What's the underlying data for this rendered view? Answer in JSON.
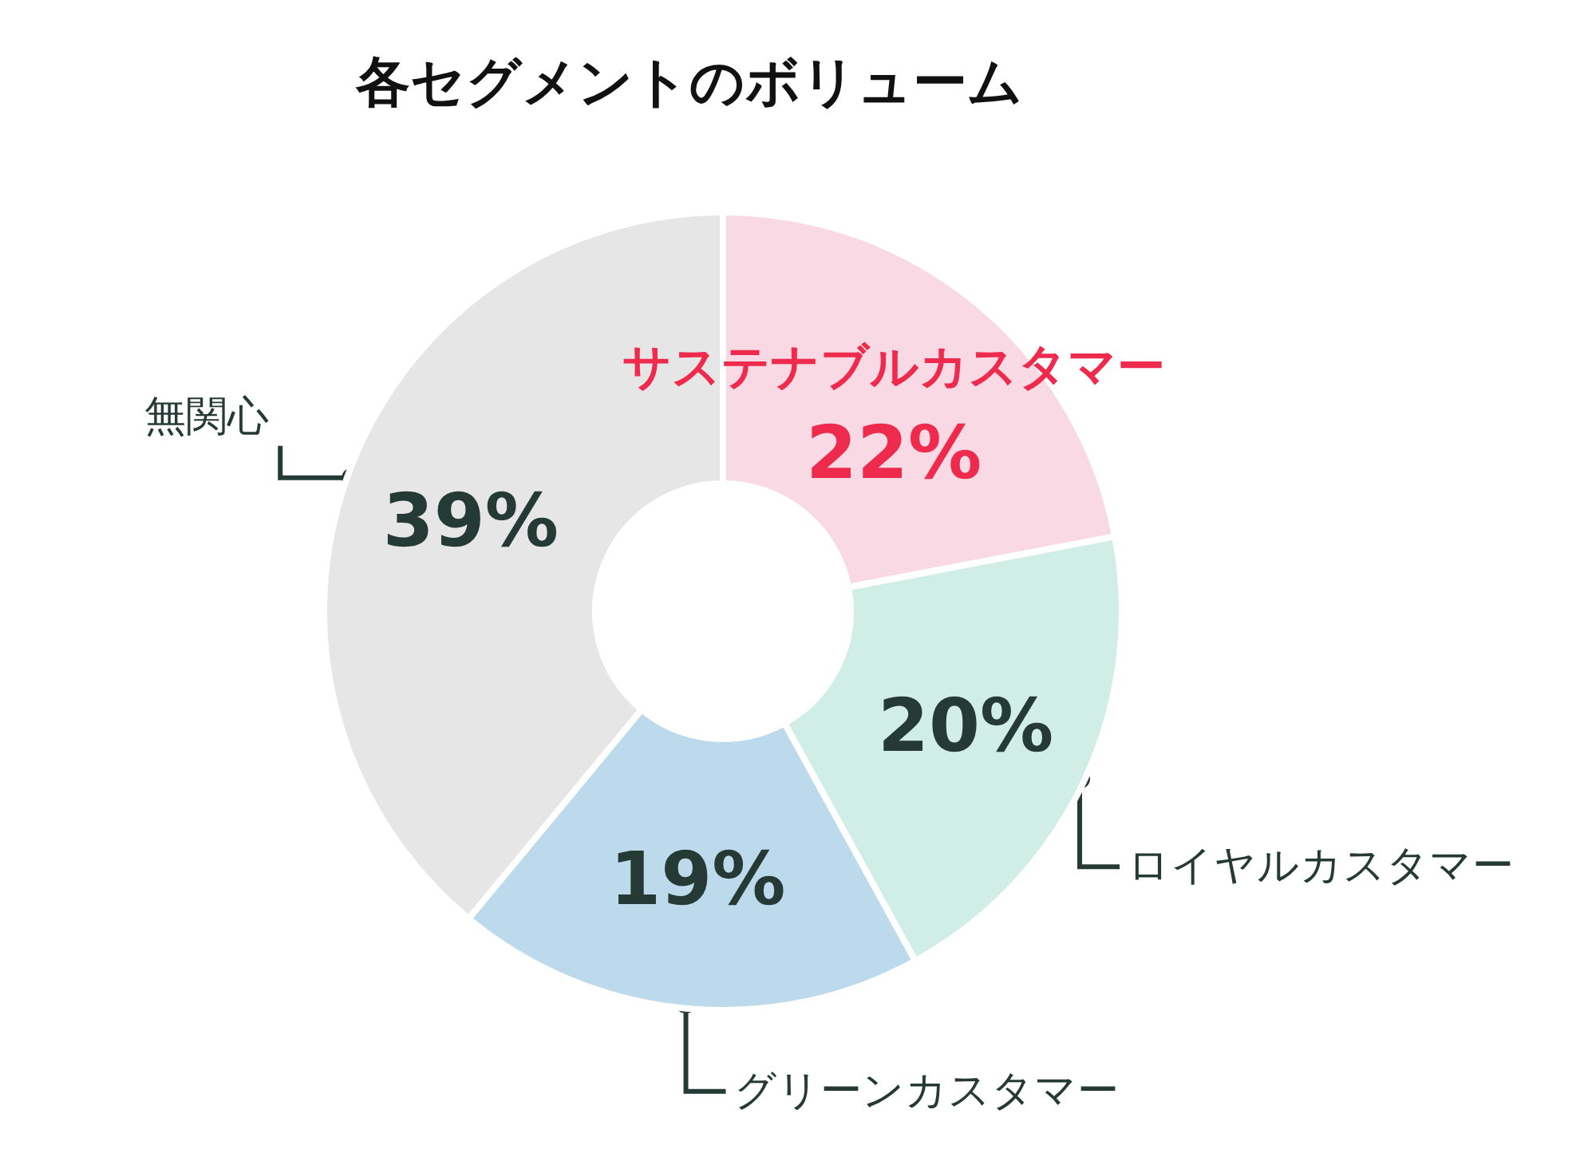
{
  "chart_data": {
    "type": "donut",
    "title": "各セグメントのボリューム",
    "categories": [
      "サステナブルカスタマー",
      "ロイヤルカスタマー",
      "グリーンカスタマー",
      "無関心"
    ],
    "values": [
      22,
      20,
      19,
      39
    ],
    "value_labels": [
      "22%",
      "20%",
      "19%",
      "39%"
    ],
    "colors": [
      "#f9d9e3",
      "#d0ede6",
      "#bcdaeb",
      "#e6e6e6"
    ],
    "legend": false
  }
}
